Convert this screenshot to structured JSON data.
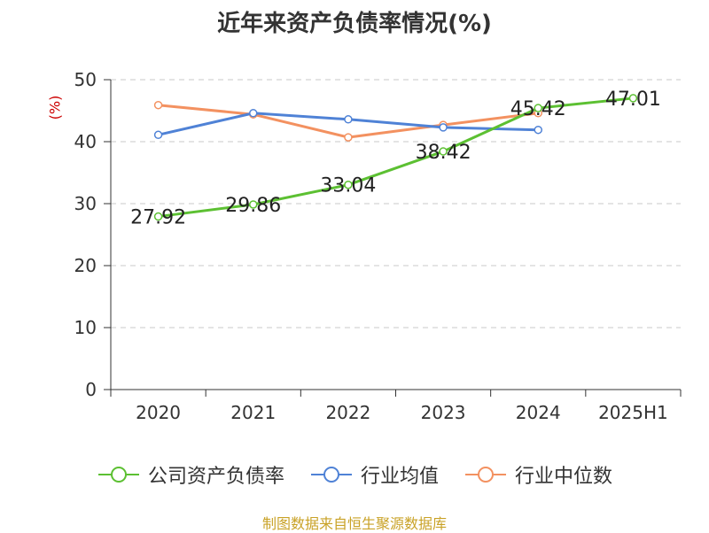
{
  "chart_data": {
    "type": "line",
    "title": "近年来资产负债率情况(%)",
    "ylabel": "(%)",
    "xlabel": "",
    "categories": [
      "2020",
      "2021",
      "2022",
      "2023",
      "2024",
      "2025H1"
    ],
    "ylim": [
      0,
      50
    ],
    "yticks": [
      0,
      10,
      20,
      30,
      40,
      50
    ],
    "grid": true,
    "legend_position": "bottom",
    "series": [
      {
        "name": "公司资产负债率",
        "color": "#5cc032",
        "values": [
          27.92,
          29.86,
          33.04,
          38.42,
          45.42,
          47.01
        ],
        "labels": [
          "27.92",
          "29.86",
          "33.04",
          "38.42",
          "45.42",
          "47.01"
        ]
      },
      {
        "name": "行业均值",
        "color": "#4f82d6",
        "values": [
          41.1,
          44.6,
          43.6,
          42.3,
          41.9,
          null
        ]
      },
      {
        "name": "行业中位数",
        "color": "#f39160",
        "values": [
          45.9,
          44.4,
          40.7,
          42.7,
          44.6,
          null
        ]
      }
    ]
  },
  "source": "制图数据来自恒生聚源数据库"
}
